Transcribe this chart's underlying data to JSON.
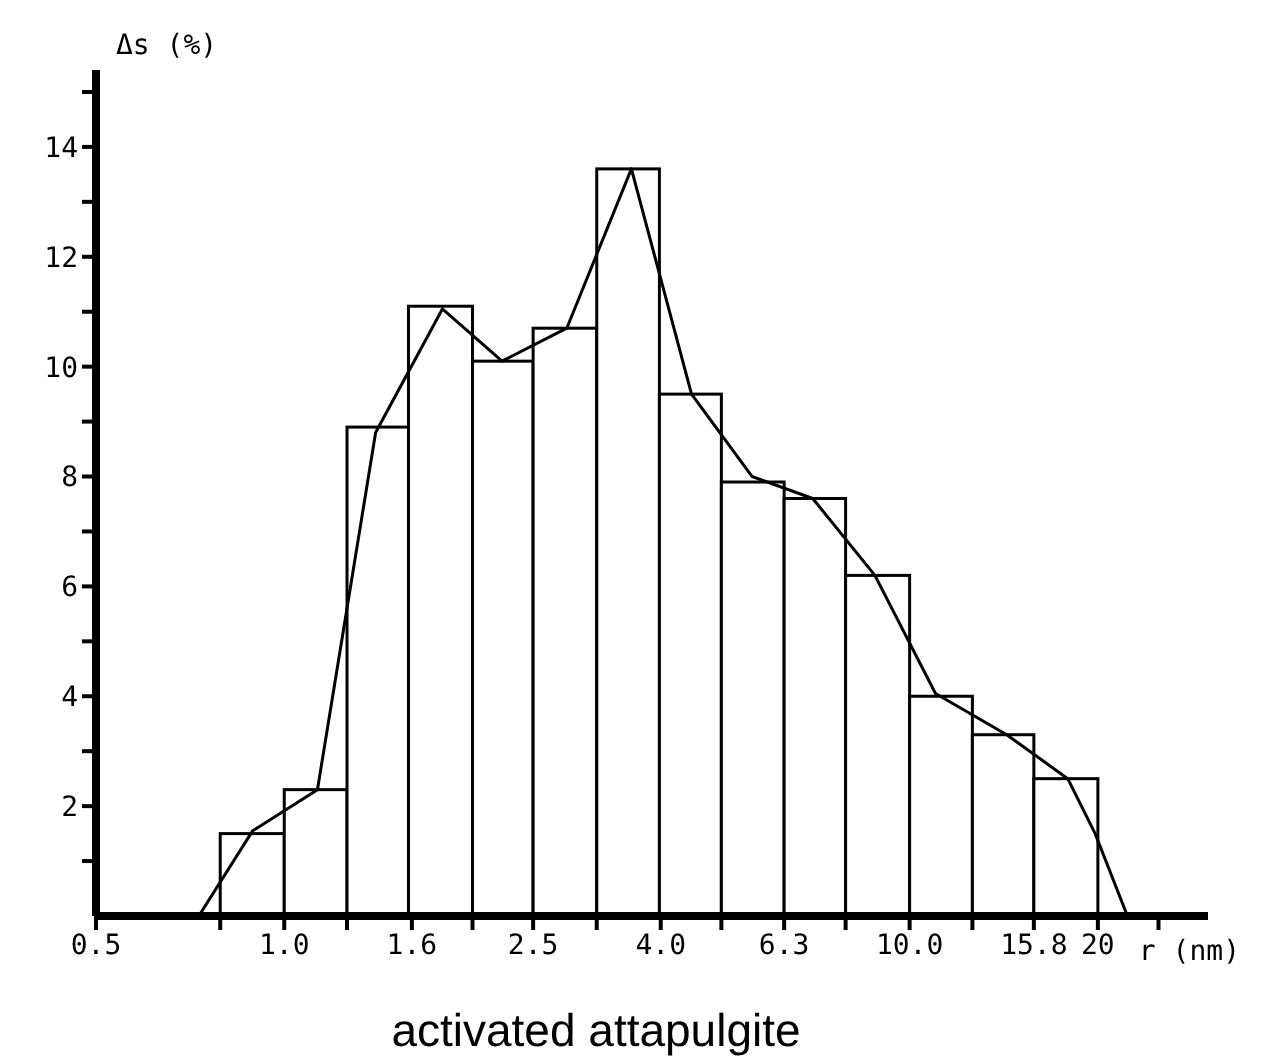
{
  "chart_data": {
    "type": "histogram",
    "title": "activated attapulgite",
    "xlabel": "r (nm)",
    "ylabel": "Δs (%)",
    "log": "x",
    "bins": [
      0.79,
      1.0,
      1.26,
      1.58,
      2.0,
      2.5,
      3.16,
      3.98,
      5.0,
      6.3,
      7.9,
      10.0,
      12.6,
      15.8,
      20
    ],
    "values": [
      1.5,
      2.3,
      8.9,
      11.1,
      10.1,
      10.7,
      13.6,
      9.5,
      7.9,
      7.6,
      6.2,
      4.0,
      3.3,
      2.5
    ],
    "color": "#ffffff",
    "series": [
      {
        "type": "line",
        "color": "#000000",
        "x": [
          0.73,
          0.89,
          1.13,
          1.4,
          1.79,
          2.23,
          2.83,
          3.59,
          4.48,
          5.6,
          7.0,
          8.8,
          11.0,
          14.3,
          17.9,
          19.8,
          22.3
        ],
        "values": [
          0,
          1.55,
          2.3,
          8.8,
          11.05,
          10.1,
          10.7,
          13.6,
          9.5,
          8.0,
          7.6,
          6.2,
          4.05,
          3.3,
          2.5,
          1.5,
          0
        ]
      }
    ],
    "xlim": [
      0.5,
      30
    ],
    "xticks": [
      0.5,
      {
        "value": 0.79,
        "label": null
      },
      {
        "value": 1.0,
        "label": "1.0"
      },
      {
        "value": 1.26,
        "label": null
      },
      1.6,
      {
        "value": 2.0,
        "label": null
      },
      2.5,
      {
        "value": 3.16,
        "label": null
      },
      {
        "value": 4.0,
        "label": "4.0"
      },
      {
        "value": 5.0,
        "label": null
      },
      6.3,
      {
        "value": 7.9,
        "label": null
      },
      {
        "value": 10.0,
        "label": "10.0"
      },
      {
        "value": 12.6,
        "label": null
      },
      15.8,
      20,
      {
        "value": 25,
        "label": null
      }
    ],
    "ylim": [
      0,
      15.4
    ],
    "yticks": [
      {
        "value": 1,
        "label": null
      },
      2,
      {
        "value": 3,
        "label": null
      },
      4,
      {
        "value": 5,
        "label": null
      },
      6,
      {
        "value": 7,
        "label": null
      },
      8,
      {
        "value": 9,
        "label": null
      },
      10,
      {
        "value": 11,
        "label": null
      },
      12,
      {
        "value": 13,
        "label": null
      },
      14,
      {
        "value": 15,
        "label": null
      }
    ]
  }
}
